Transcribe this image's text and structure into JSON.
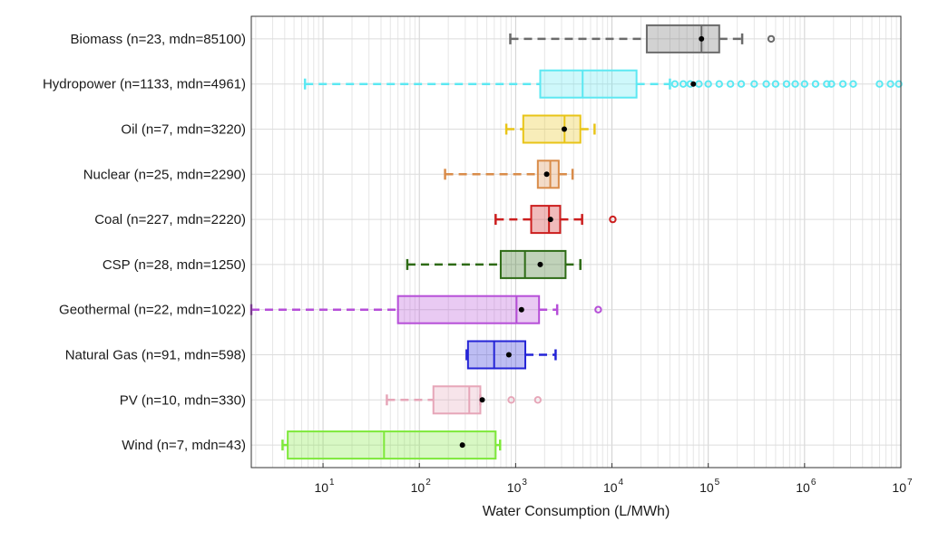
{
  "chart_data": {
    "type": "boxplot",
    "orientation": "horizontal",
    "title": "",
    "xlabel": "Water Consumption (L/MWh)",
    "ylabel": "",
    "xscale": "log",
    "xlim": [
      1.8,
      10000000
    ],
    "grid": true,
    "x_ticks": [
      {
        "base": "10",
        "exp": "1",
        "value": 10
      },
      {
        "base": "10",
        "exp": "2",
        "value": 100
      },
      {
        "base": "10",
        "exp": "3",
        "value": 1000
      },
      {
        "base": "10",
        "exp": "4",
        "value": 10000
      },
      {
        "base": "10",
        "exp": "5",
        "value": 100000
      },
      {
        "base": "10",
        "exp": "6",
        "value": 1000000
      },
      {
        "base": "10",
        "exp": "7",
        "value": 10000000
      }
    ],
    "series": [
      {
        "label": "Biomass (n=23, mdn=85100)",
        "color": "#6b6b6b",
        "whisker_low": 880,
        "q1": 23000,
        "median": 85100,
        "q3": 130000,
        "whisker_high": 225000,
        "mean": 85000,
        "outliers": [
          450000
        ]
      },
      {
        "label": "Hydropower (n=1133, mdn=4961)",
        "color": "#5ce8f2",
        "whisker_low": 6.5,
        "q1": 1800,
        "median": 4961,
        "q3": 18000,
        "whisker_high": 40000,
        "mean": 70000,
        "outliers": [
          45000,
          55000,
          65000,
          80000,
          100000,
          130000,
          170000,
          220000,
          300000,
          400000,
          500000,
          650000,
          800000,
          1000000,
          1300000,
          1700000,
          1900000,
          2500000,
          3200000,
          6000000,
          7800000,
          9500000
        ]
      },
      {
        "label": "Oil (n=7, mdn=3220)",
        "color": "#e8c417",
        "whisker_low": 800,
        "q1": 1200,
        "median": 3220,
        "q3": 4700,
        "whisker_high": 6600,
        "mean": 3200,
        "outliers": []
      },
      {
        "label": "Nuclear (n=25, mdn=2290)",
        "color": "#d98c4a",
        "whisker_low": 185,
        "q1": 1700,
        "median": 2290,
        "q3": 2800,
        "whisker_high": 3900,
        "mean": 2100,
        "outliers": []
      },
      {
        "label": "Coal (n=227, mdn=2220)",
        "color": "#cc1f1f",
        "whisker_low": 620,
        "q1": 1450,
        "median": 2220,
        "q3": 2900,
        "whisker_high": 4900,
        "mean": 2300,
        "outliers": [
          10200
        ]
      },
      {
        "label": "CSP (n=28, mdn=1250)",
        "color": "#2e6b16",
        "whisker_low": 75,
        "q1": 700,
        "median": 1250,
        "q3": 3300,
        "whisker_high": 4700,
        "mean": 1800,
        "outliers": []
      },
      {
        "label": "Geothermal (n=22, mdn=1022)",
        "color": "#b64ed8",
        "whisker_low": 1.8,
        "q1": 60,
        "median": 1022,
        "q3": 1750,
        "whisker_high": 2700,
        "mean": 1150,
        "outliers": [
          7200
        ]
      },
      {
        "label": "Natural Gas (n=91, mdn=598)",
        "color": "#2424d6",
        "whisker_low": 310,
        "q1": 320,
        "median": 598,
        "q3": 1260,
        "whisker_high": 2600,
        "mean": 850,
        "outliers": []
      },
      {
        "label": "PV (n=10, mdn=330)",
        "color": "#e6a6b8",
        "whisker_low": 46,
        "q1": 140,
        "median": 330,
        "q3": 430,
        "whisker_high": 430,
        "mean": 450,
        "outliers": [
          900,
          1700
        ]
      },
      {
        "label": "Wind (n=7, mdn=43)",
        "color": "#7ee83a",
        "whisker_low": 3.8,
        "q1": 4.3,
        "median": 43,
        "q3": 620,
        "whisker_high": 690,
        "mean": 280,
        "outliers": []
      }
    ]
  }
}
